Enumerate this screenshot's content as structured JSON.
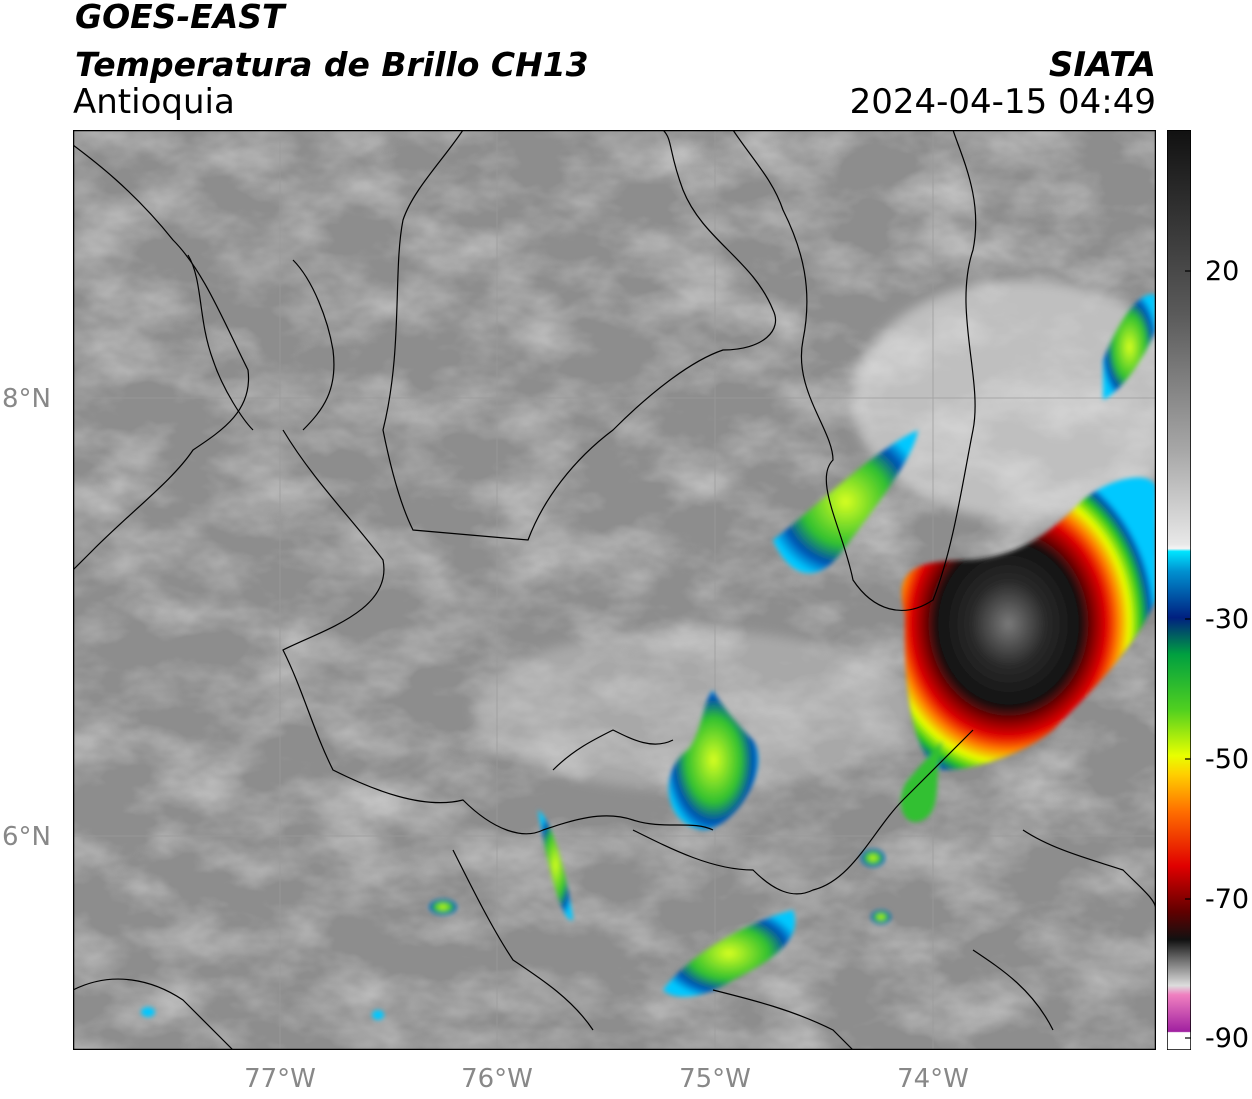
{
  "header": {
    "satellite": "GOES-EAST",
    "product": "Temperatura de Brillo CH13",
    "region": "Antioquia",
    "brand": "SIATA",
    "datetime": "2024-04-15 04:49"
  },
  "axes": {
    "lat_ticks": [
      {
        "label": "8°N",
        "value": 8
      },
      {
        "label": "6°N",
        "value": 6
      }
    ],
    "lon_ticks": [
      {
        "label": "77°W",
        "value": -77
      },
      {
        "label": "76°W",
        "value": -76
      },
      {
        "label": "75°W",
        "value": -75
      },
      {
        "label": "74°W",
        "value": -74
      }
    ],
    "grid": true
  },
  "colorbar": {
    "ticks": [
      {
        "label": "20",
        "value": 20
      },
      {
        "label": "-30",
        "value": -30
      },
      {
        "label": "-50",
        "value": -50
      },
      {
        "label": "-70",
        "value": -70
      },
      {
        "label": "-90",
        "value": -90
      }
    ],
    "range": [
      -90,
      30
    ]
  },
  "colors": {
    "cold_core": "#111111",
    "red_ring": "#c80000",
    "orange": "#ff8c00",
    "yellow": "#e6ff00",
    "green": "#20c020",
    "blue": "#0040a0",
    "cyan": "#00c8ff",
    "magenta": "#c030c0"
  }
}
